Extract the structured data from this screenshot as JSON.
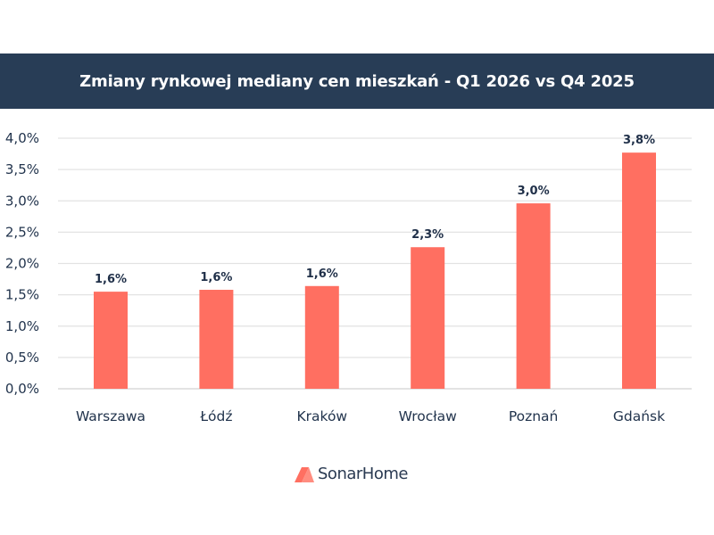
{
  "header": {
    "title": "Zmiany rynkowej mediany cen mieszkań - Q1 2026 vs Q4 2025"
  },
  "brand": {
    "name": "SonarHome",
    "logo_icon": "house-roof-icon"
  },
  "colors": {
    "header_bg": "#283d56",
    "bar": "#ff6f61",
    "text": "#22344d",
    "grid": "#e3e3e3"
  },
  "chart_data": {
    "type": "bar",
    "title": "Zmiany rynkowej mediany cen mieszkań - Q1 2026 vs Q4 2025",
    "xlabel": "",
    "ylabel": "",
    "categories": [
      "Warszawa",
      "Łódź",
      "Kraków",
      "Wrocław",
      "Poznań",
      "Gdańsk"
    ],
    "values": [
      1.55,
      1.58,
      1.64,
      2.26,
      2.96,
      3.77
    ],
    "data_labels": [
      "1,6%",
      "1,6%",
      "1,6%",
      "2,3%",
      "3,0%",
      "3,8%"
    ],
    "ylim": [
      0,
      4.0
    ],
    "yticks": [
      0,
      0.5,
      1.0,
      1.5,
      2.0,
      2.5,
      3.0,
      3.5,
      4.0
    ],
    "ytick_labels": [
      "0,0%",
      "0,5%",
      "1,0%",
      "1,5%",
      "2,0%",
      "2,5%",
      "3,0%",
      "3,5%",
      "4,0%"
    ],
    "grid": true,
    "legend": "none"
  }
}
